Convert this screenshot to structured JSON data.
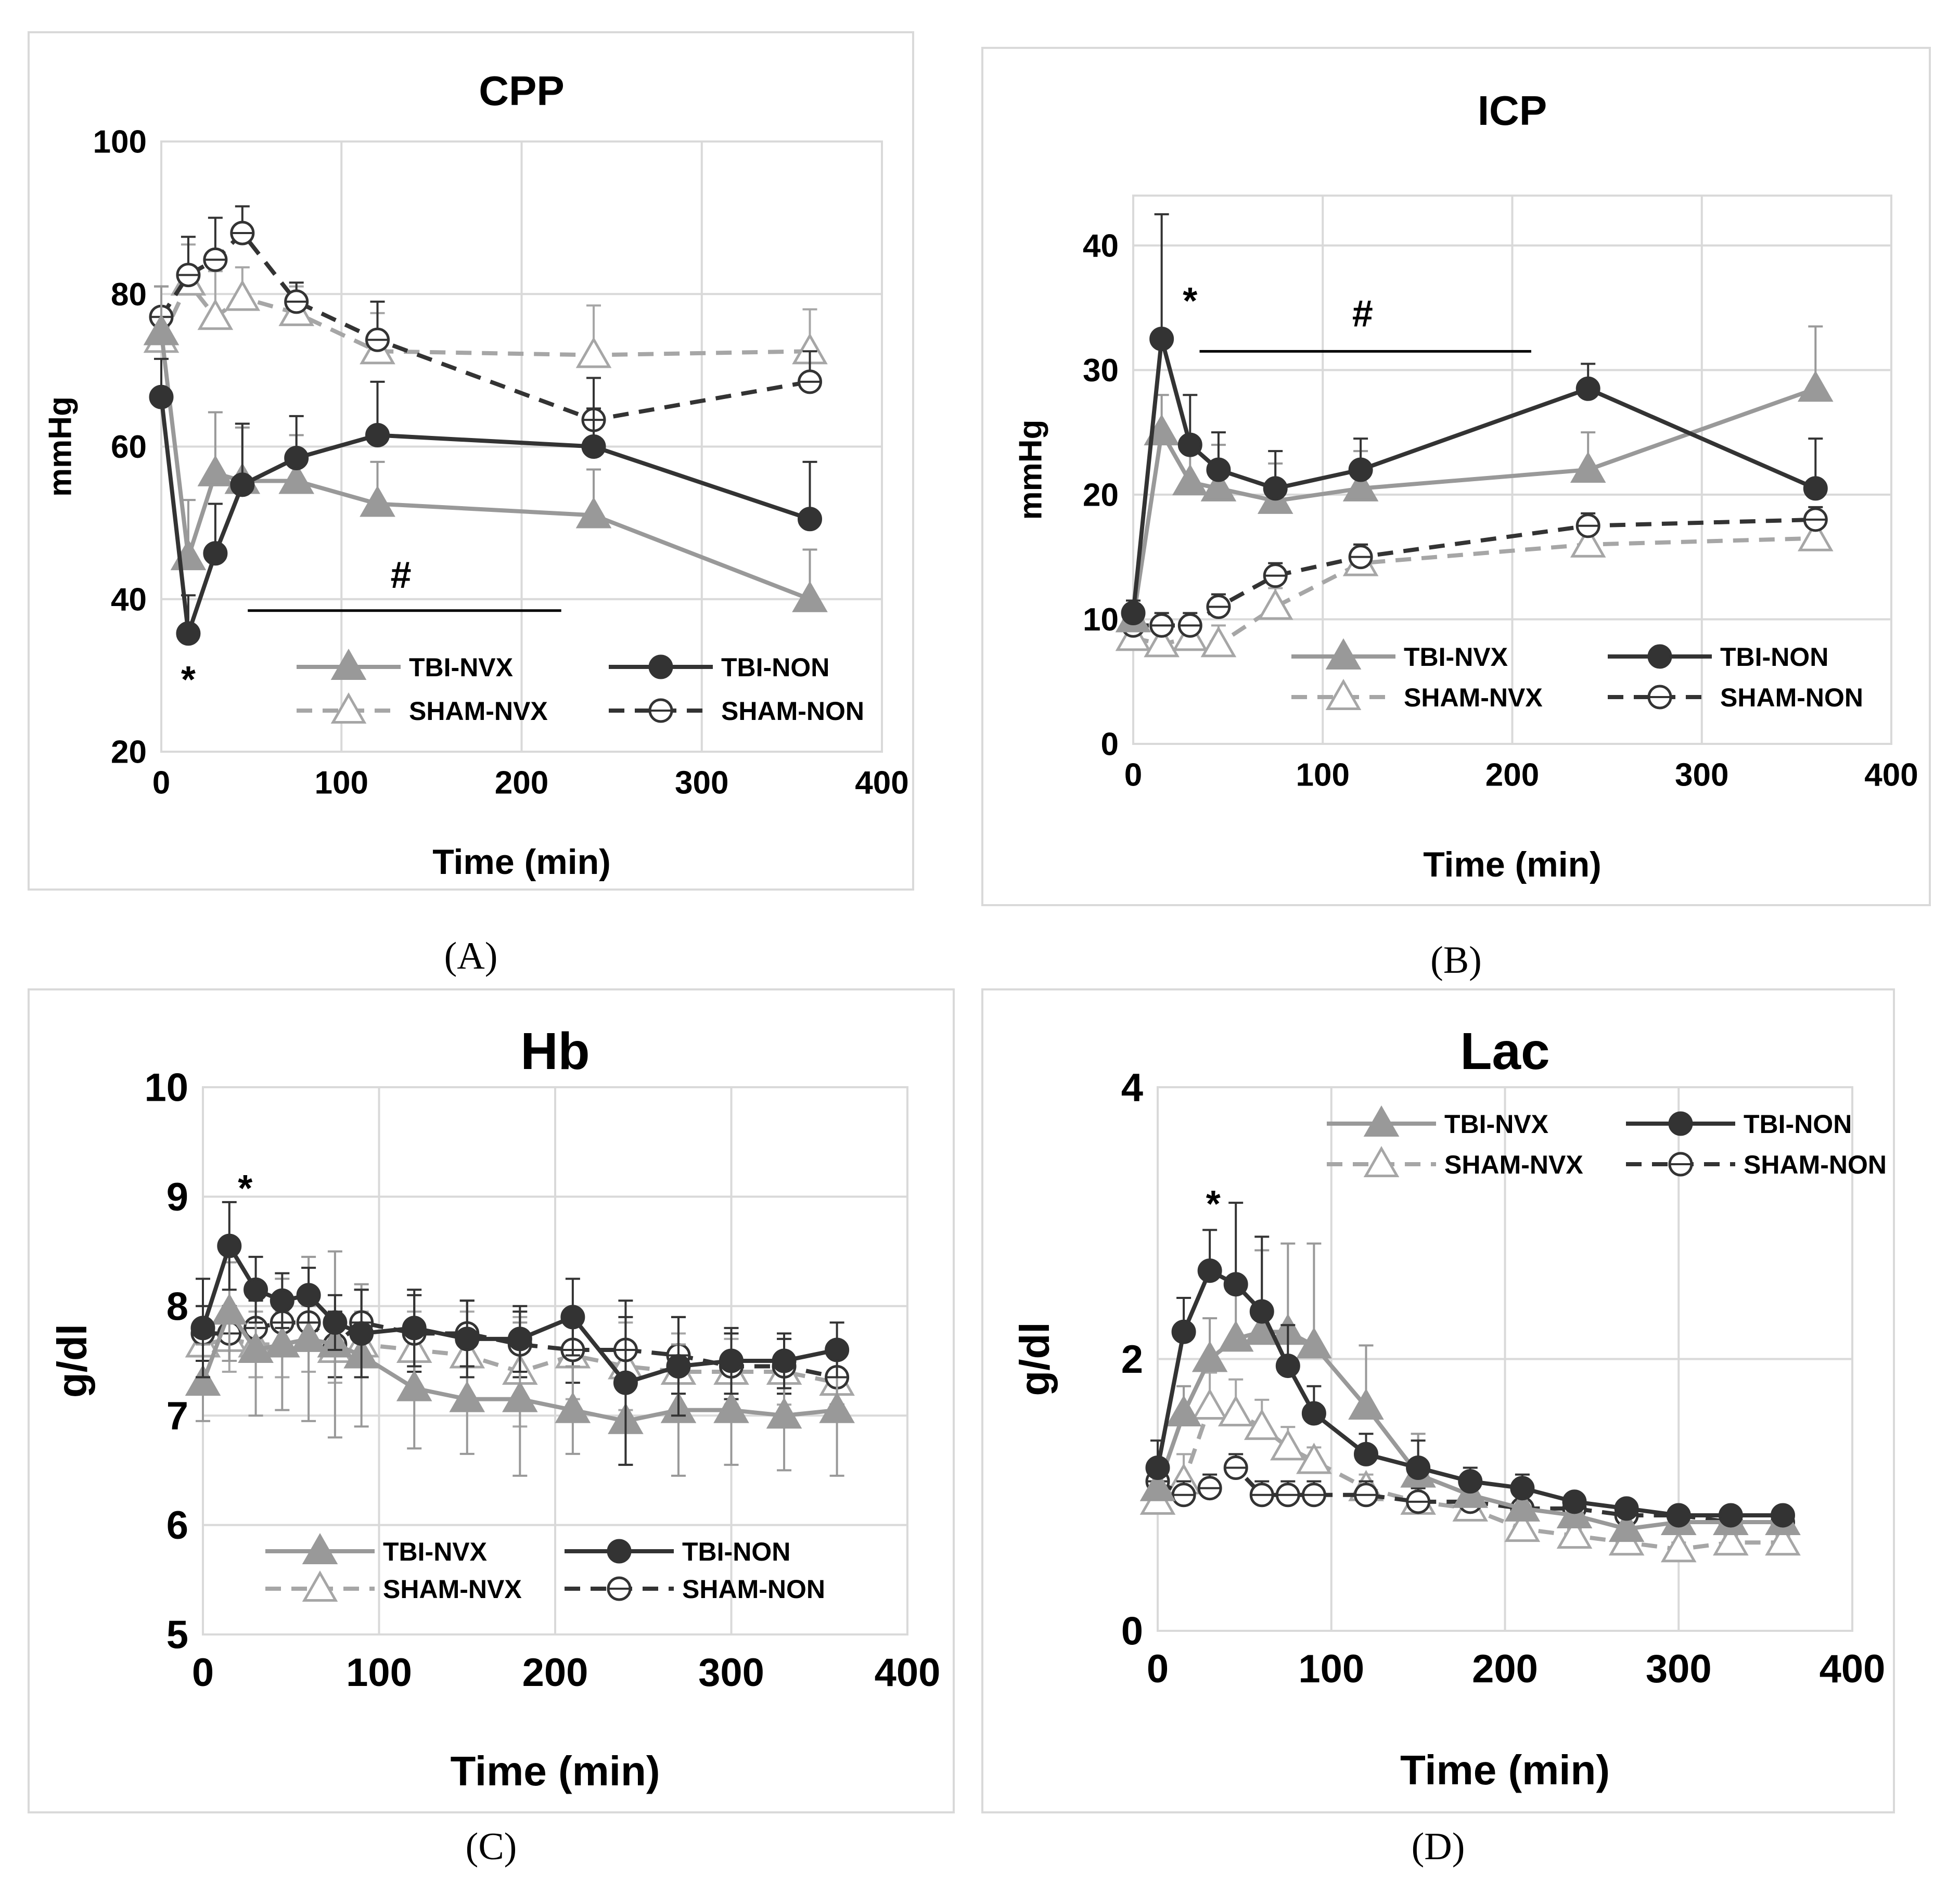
{
  "colors": {
    "tbi_nvx": "#999999",
    "tbi_non": "#333333",
    "sham_nvx": "#a6a6a6",
    "sham_non": "#333333",
    "grid": "#d9d9d9"
  },
  "series_meta": [
    {
      "key": "tbi_nvx",
      "name": "TBI-NVX",
      "marker": "triangle",
      "filled": true,
      "dashed": false
    },
    {
      "key": "tbi_non",
      "name": "TBI-NON",
      "marker": "circle",
      "filled": true,
      "dashed": false
    },
    {
      "key": "sham_nvx",
      "name": "SHAM-NVX",
      "marker": "triangle",
      "filled": false,
      "dashed": true
    },
    {
      "key": "sham_non",
      "name": "SHAM-NON",
      "marker": "circle-line",
      "filled": false,
      "dashed": true
    }
  ],
  "chart_data": [
    {
      "panel": "(A)",
      "type": "line",
      "title": "CPP",
      "xlabel": "Time (min)",
      "ylabel": "mmHg",
      "xlim": [
        0,
        400
      ],
      "ylim": [
        20,
        100
      ],
      "xticks": [
        0,
        100,
        200,
        300,
        400
      ],
      "yticks": [
        20,
        40,
        60,
        80,
        100
      ],
      "legend_position": "bottom-center",
      "series": [
        {
          "name": "TBI-NVX",
          "x": [
            0,
            15,
            30,
            45,
            75,
            120,
            240,
            360
          ],
          "y": [
            75,
            45.5,
            56.5,
            55.5,
            55.5,
            52.5,
            51,
            40
          ],
          "err": [
            6,
            7.5,
            8,
            7,
            6,
            5.5,
            6,
            6.5
          ]
        },
        {
          "name": "TBI-NON",
          "x": [
            0,
            15,
            30,
            45,
            75,
            120,
            240,
            360
          ],
          "y": [
            66.5,
            35.5,
            46,
            55,
            58.5,
            61.5,
            60,
            50.5
          ],
          "err": [
            5,
            5,
            6.5,
            8,
            5.5,
            7,
            5,
            7.5
          ]
        },
        {
          "name": "SHAM-NVX",
          "x": [
            0,
            15,
            30,
            45,
            75,
            120,
            240,
            360
          ],
          "y": [
            74,
            81.5,
            77,
            79.5,
            77.5,
            72.5,
            72,
            72.5
          ],
          "err": [
            4,
            5,
            6,
            4,
            3.5,
            5,
            6.5,
            5.5
          ]
        },
        {
          "name": "SHAM-NON",
          "x": [
            0,
            15,
            30,
            45,
            75,
            120,
            240,
            360
          ],
          "y": [
            77,
            82.5,
            84.5,
            88,
            79,
            74,
            63.5,
            68.5
          ],
          "err": [
            4,
            5,
            5.5,
            3.5,
            2.5,
            5,
            5.5,
            4
          ]
        }
      ],
      "annotations": [
        {
          "text": "*",
          "x": 15,
          "y": 30.5
        },
        {
          "text": "#",
          "x": 133,
          "y": 41.5,
          "bar_x": [
            48,
            222
          ],
          "bar_y": 38.5
        }
      ]
    },
    {
      "panel": "(B)",
      "type": "line",
      "title": "ICP",
      "xlabel": "Time (min)",
      "ylabel": "mmHg",
      "xlim": [
        0,
        400
      ],
      "ylim": [
        0,
        44
      ],
      "xticks": [
        0,
        100,
        200,
        300,
        400
      ],
      "yticks": [
        0,
        10,
        20,
        30,
        40
      ],
      "legend_position": "bottom-center",
      "series": [
        {
          "name": "TBI-NVX",
          "x": [
            0,
            15,
            30,
            45,
            75,
            120,
            240,
            360
          ],
          "y": [
            10,
            25,
            21,
            20.5,
            19.5,
            20.5,
            22,
            28.5
          ],
          "err": [
            1,
            3,
            3.5,
            3.5,
            3,
            3,
            3,
            5
          ]
        },
        {
          "name": "TBI-NON",
          "x": [
            0,
            15,
            30,
            45,
            75,
            120,
            240,
            360
          ],
          "y": [
            10.5,
            32.5,
            24,
            22,
            20.5,
            22,
            28.5,
            20.5
          ],
          "err": [
            1,
            10,
            4,
            3,
            3,
            2.5,
            2,
            4
          ]
        },
        {
          "name": "SHAM-NVX",
          "x": [
            0,
            15,
            30,
            45,
            75,
            120,
            240,
            360
          ],
          "y": [
            8.5,
            8,
            8.5,
            8,
            11,
            14.5,
            16,
            16.5
          ],
          "err": [
            1.5,
            1.5,
            1.5,
            1.5,
            1.5,
            1.5,
            1,
            1
          ]
        },
        {
          "name": "SHAM-NON",
          "x": [
            0,
            15,
            30,
            45,
            75,
            120,
            240,
            360
          ],
          "y": [
            9.5,
            9.5,
            9.5,
            11,
            13.5,
            15,
            17.5,
            18
          ],
          "err": [
            1,
            1,
            1,
            1,
            1,
            1,
            1,
            1
          ]
        }
      ],
      "annotations": [
        {
          "text": "*",
          "x": 30,
          "y": 36.2
        },
        {
          "text": "#",
          "x": 121,
          "y": 33.5,
          "bar_x": [
            35,
            210
          ],
          "bar_y": 31.5
        }
      ]
    },
    {
      "panel": "(C)",
      "type": "line",
      "title": "Hb",
      "xlabel": "Time (min)",
      "ylabel": "g/dl",
      "xlim": [
        0,
        400
      ],
      "ylim": [
        5,
        10
      ],
      "xticks": [
        0,
        100,
        200,
        300,
        400
      ],
      "yticks": [
        5,
        6,
        7,
        8,
        9,
        10
      ],
      "legend_position": "bottom-center",
      "series": [
        {
          "name": "TBI-NVX",
          "x": [
            0,
            15,
            30,
            45,
            60,
            75,
            90,
            120,
            150,
            180,
            210,
            240,
            270,
            300,
            330,
            360
          ],
          "y": [
            7.3,
            7.95,
            7.6,
            7.65,
            7.7,
            7.65,
            7.55,
            7.25,
            7.15,
            7.15,
            7.05,
            6.95,
            7.05,
            7.05,
            7.0,
            7.05
          ],
          "err": [
            0.35,
            0.45,
            0.6,
            0.6,
            0.75,
            0.85,
            0.65,
            0.55,
            0.5,
            0.7,
            0.4,
            0.4,
            0.6,
            0.5,
            0.5,
            0.6
          ]
        },
        {
          "name": "TBI-NON",
          "x": [
            0,
            15,
            30,
            45,
            60,
            75,
            90,
            120,
            150,
            180,
            210,
            240,
            270,
            300,
            330,
            360
          ],
          "y": [
            7.8,
            8.55,
            8.15,
            8.05,
            8.1,
            7.85,
            7.75,
            7.8,
            7.7,
            7.7,
            7.9,
            7.3,
            7.45,
            7.5,
            7.5,
            7.6
          ],
          "err": [
            0.45,
            0.4,
            0.3,
            0.25,
            0.25,
            0.25,
            0.4,
            0.35,
            0.35,
            0.3,
            0.35,
            0.75,
            0.45,
            0.3,
            0.25,
            0.25
          ]
        },
        {
          "name": "SHAM-NVX",
          "x": [
            0,
            15,
            30,
            45,
            60,
            75,
            90,
            120,
            150,
            180,
            210,
            240,
            270,
            300,
            330,
            360
          ],
          "y": [
            7.65,
            7.7,
            7.65,
            7.65,
            7.7,
            7.6,
            7.65,
            7.6,
            7.55,
            7.4,
            7.55,
            7.45,
            7.4,
            7.4,
            7.4,
            7.3
          ],
          "err": [
            0.35,
            0.3,
            0.3,
            0.3,
            0.3,
            0.3,
            0.3,
            0.35,
            0.4,
            0.5,
            0.4,
            0.4,
            0.35,
            0.3,
            0.3,
            0.3
          ]
        },
        {
          "name": "SHAM-NON",
          "x": [
            0,
            15,
            30,
            45,
            60,
            75,
            90,
            120,
            150,
            180,
            210,
            240,
            270,
            300,
            330,
            360
          ],
          "y": [
            7.75,
            7.75,
            7.8,
            7.85,
            7.85,
            7.65,
            7.85,
            7.75,
            7.75,
            7.65,
            7.6,
            7.6,
            7.55,
            7.45,
            7.45,
            7.35
          ],
          "err": [
            0.25,
            0.25,
            0.25,
            0.25,
            0.25,
            0.3,
            0.3,
            0.35,
            0.3,
            0.3,
            0.3,
            0.3,
            0.35,
            0.3,
            0.25,
            0.25
          ]
        }
      ],
      "annotations": [
        {
          "text": "*",
          "x": 24,
          "y": 9.15
        }
      ]
    },
    {
      "panel": "(D)",
      "type": "line",
      "title": "Lac",
      "xlabel": "Time (min)",
      "ylabel": "g/dl",
      "xlim": [
        0,
        400
      ],
      "ylim": [
        0,
        4
      ],
      "xticks": [
        0,
        100,
        200,
        300,
        400
      ],
      "yticks": [
        0,
        2,
        4
      ],
      "legend_position": "top-right",
      "series": [
        {
          "name": "TBI-NVX",
          "x": [
            0,
            15,
            30,
            45,
            60,
            75,
            90,
            120,
            150,
            180,
            210,
            240,
            270,
            300,
            330,
            360
          ],
          "y": [
            1.05,
            1.6,
            2.0,
            2.15,
            2.2,
            2.2,
            2.1,
            1.65,
            1.15,
            1.0,
            0.9,
            0.85,
            0.75,
            0.8,
            0.8,
            0.8
          ],
          "err": [
            0.2,
            0.2,
            0.3,
            0.35,
            0.6,
            0.65,
            0.75,
            0.45,
            0.3,
            0.15,
            0.1,
            0.1,
            0.1,
            0.1,
            0.1,
            0.1
          ]
        },
        {
          "name": "TBI-NON",
          "x": [
            0,
            15,
            30,
            45,
            60,
            75,
            90,
            120,
            150,
            180,
            210,
            240,
            270,
            300,
            330,
            360
          ],
          "y": [
            1.2,
            2.2,
            2.65,
            2.55,
            2.35,
            1.95,
            1.6,
            1.3,
            1.2,
            1.1,
            1.05,
            0.95,
            0.9,
            0.85,
            0.85,
            0.85
          ],
          "err": [
            0.2,
            0.25,
            0.3,
            0.6,
            0.55,
            0.3,
            0.2,
            0.15,
            0.2,
            0.1,
            0.1,
            0.05,
            0.05,
            0.05,
            0.05,
            0.05
          ]
        },
        {
          "name": "SHAM-NVX",
          "x": [
            0,
            15,
            30,
            45,
            60,
            75,
            90,
            120,
            150,
            180,
            210,
            240,
            270,
            300,
            330,
            360
          ],
          "y": [
            0.95,
            1.1,
            1.65,
            1.6,
            1.5,
            1.35,
            1.25,
            1.05,
            0.95,
            0.9,
            0.75,
            0.7,
            0.65,
            0.6,
            0.65,
            0.65
          ],
          "err": [
            0.2,
            0.2,
            0.25,
            0.25,
            0.2,
            0.15,
            0.1,
            0.1,
            0.1,
            0.1,
            0.1,
            0.05,
            0.05,
            0.05,
            0.05,
            0.05
          ]
        },
        {
          "name": "SHAM-NON",
          "x": [
            0,
            15,
            30,
            45,
            60,
            75,
            90,
            120,
            150,
            180,
            210,
            240,
            270,
            300,
            330,
            360
          ],
          "y": [
            1.1,
            1.0,
            1.05,
            1.2,
            1.0,
            1.0,
            1.0,
            1.0,
            0.95,
            0.95,
            0.9,
            0.9,
            0.85,
            0.85,
            0.8,
            0.8
          ],
          "err": [
            0.1,
            0.1,
            0.1,
            0.1,
            0.1,
            0.1,
            0.1,
            0.1,
            0.1,
            0.1,
            0.1,
            0.1,
            0.05,
            0.05,
            0.05,
            0.05
          ]
        }
      ],
      "annotations": [
        {
          "text": "*",
          "x": 32,
          "y": 3.2
        }
      ]
    }
  ]
}
